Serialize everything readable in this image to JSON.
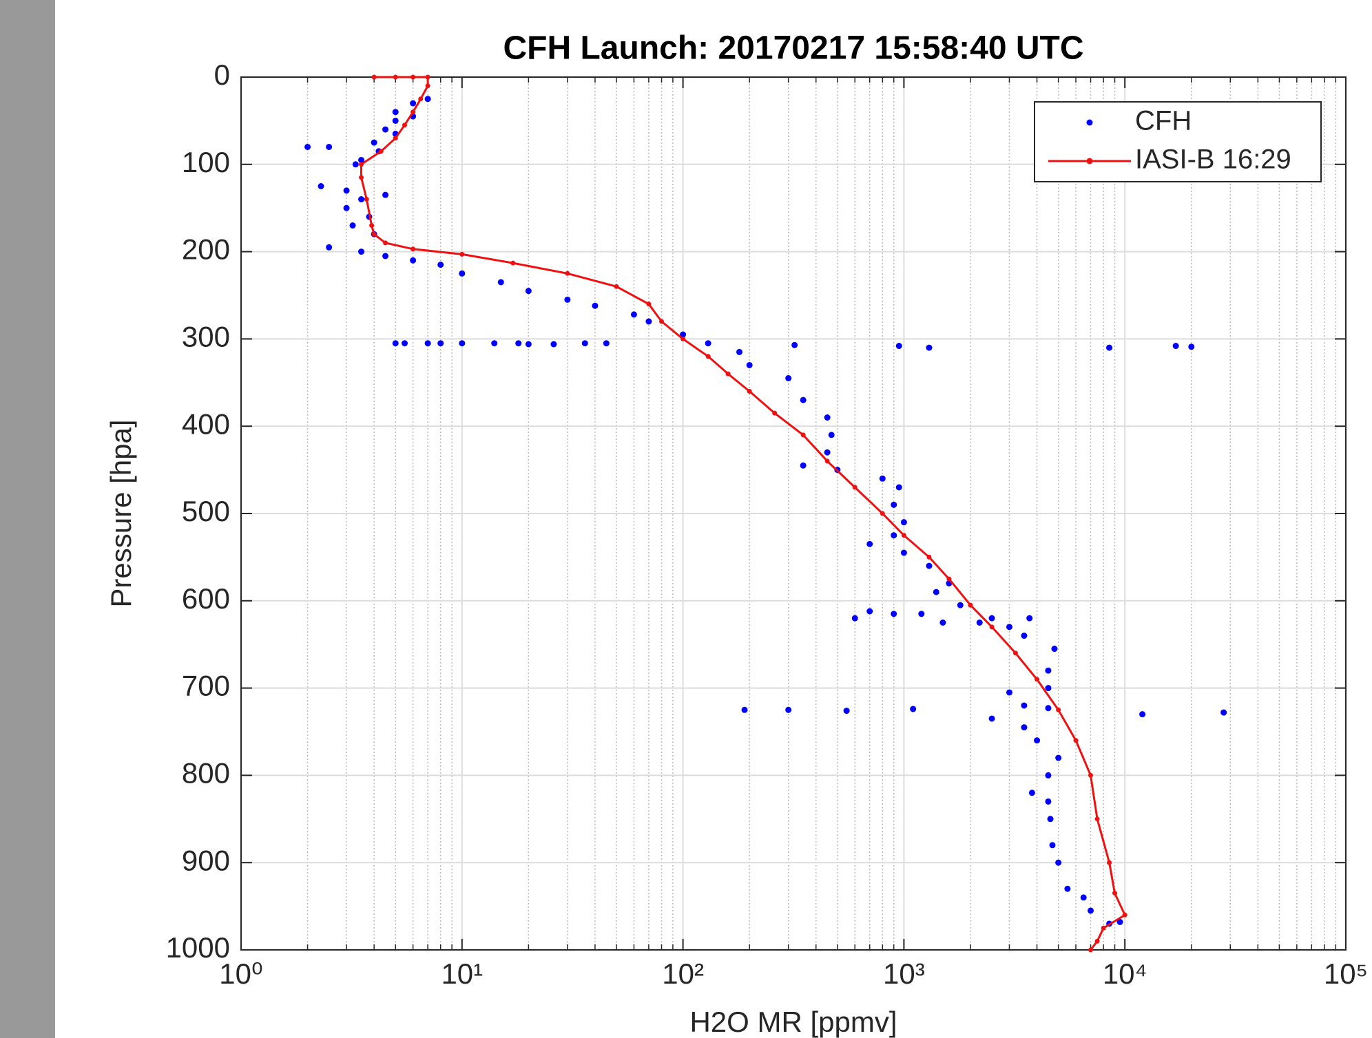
{
  "chart_data": {
    "type": "scatter",
    "title": "CFH Launch: 20170217 15:58:40 UTC",
    "x_label": "H2O MR [ppmv]",
    "y_label": "Pressure [hpa]",
    "x_log": true,
    "y_reversed": true,
    "grid": true,
    "minor_grid": true,
    "legend": "northeast",
    "xlim": [
      1,
      100000
    ],
    "xticks": [
      {
        "value": 1,
        "label": "10⁰"
      },
      {
        "value": 10,
        "label": "10¹"
      },
      {
        "value": 100,
        "label": "10²"
      },
      {
        "value": 1000,
        "label": "10³"
      },
      {
        "value": 10000,
        "label": "10⁴"
      },
      {
        "value": 100000,
        "label": "10⁵"
      }
    ],
    "x_minor_ticks": [
      2,
      3,
      4,
      5,
      6,
      7,
      8,
      9,
      20,
      30,
      40,
      50,
      60,
      70,
      80,
      90,
      200,
      300,
      400,
      500,
      600,
      700,
      800,
      900,
      2000,
      3000,
      4000,
      5000,
      6000,
      7000,
      8000,
      9000,
      20000,
      30000,
      40000,
      50000,
      60000,
      70000,
      80000,
      90000
    ],
    "ylim": [
      0,
      1000
    ],
    "yticks": [
      0,
      100,
      200,
      300,
      400,
      500,
      600,
      700,
      800,
      900,
      1000
    ],
    "series": [
      {
        "name": "CFH",
        "color": "#0000ff",
        "mode": "markers",
        "x": [
          7,
          6,
          5,
          6,
          5,
          4.5,
          5,
          4,
          4.2,
          3.5,
          3.3,
          2.5,
          2,
          2.3,
          3,
          3.5,
          4.5,
          3,
          3.8,
          3.2,
          4,
          2.5,
          3.5,
          4.5,
          6,
          8,
          10,
          15,
          20,
          30,
          40,
          60,
          70,
          100,
          130,
          180,
          200,
          300,
          350,
          450,
          470,
          450,
          350,
          500,
          800,
          950,
          900,
          1000,
          900,
          700,
          1000,
          1300,
          1600,
          1400,
          1800,
          2200,
          3500,
          4800,
          4500,
          4500,
          3000,
          3500,
          4500,
          2500,
          3500,
          4000,
          5000,
          4500,
          3800,
          4500,
          4600,
          4700,
          5000,
          5500,
          6500,
          7000,
          8500,
          9500,
          5,
          5.5,
          7,
          8,
          10,
          14,
          18,
          20,
          26,
          36,
          45,
          320,
          950,
          1300,
          8500,
          17000,
          20000,
          600,
          700,
          900,
          1200,
          1500,
          2500,
          3000,
          3700,
          190,
          300,
          550,
          1100,
          12000,
          28000
        ],
        "y": [
          25,
          30,
          40,
          45,
          50,
          60,
          65,
          75,
          85,
          95,
          100,
          80,
          80,
          125,
          130,
          140,
          135,
          150,
          160,
          170,
          180,
          195,
          200,
          205,
          210,
          215,
          225,
          235,
          245,
          255,
          262,
          272,
          280,
          295,
          305,
          315,
          330,
          345,
          370,
          390,
          410,
          430,
          445,
          450,
          460,
          470,
          490,
          510,
          525,
          535,
          545,
          560,
          580,
          590,
          605,
          625,
          640,
          655,
          680,
          700,
          705,
          720,
          723,
          735,
          745,
          760,
          780,
          800,
          820,
          830,
          850,
          880,
          900,
          930,
          940,
          955,
          970,
          968,
          305,
          305,
          305,
          305,
          305,
          305,
          305,
          306,
          306,
          305,
          305,
          307,
          308,
          310,
          310,
          308,
          309,
          620,
          612,
          615,
          615,
          625,
          620,
          630,
          620,
          725,
          725,
          726,
          724,
          730,
          728
        ]
      },
      {
        "name": "IASI-B 16:29",
        "color": "#ee1111",
        "mode": "lines+markers",
        "x": [
          4,
          5,
          6,
          7,
          7,
          6.5,
          6,
          5.5,
          5,
          4.3,
          3.5,
          3.5,
          3.7,
          3.9,
          4,
          4.5,
          6,
          10,
          17,
          30,
          50,
          70,
          80,
          100,
          130,
          160,
          200,
          260,
          350,
          450,
          600,
          800,
          1000,
          1300,
          1600,
          2000,
          2500,
          3200,
          4000,
          5000,
          6000,
          7000,
          7500,
          8500,
          9000,
          10000,
          8000,
          7500,
          7000
        ],
        "y": [
          0,
          0,
          0,
          0,
          10,
          25,
          40,
          55,
          70,
          85,
          100,
          115,
          140,
          170,
          180,
          190,
          197,
          203,
          213,
          225,
          240,
          260,
          280,
          300,
          320,
          340,
          360,
          385,
          410,
          440,
          470,
          500,
          525,
          550,
          575,
          605,
          630,
          660,
          690,
          725,
          760,
          800,
          850,
          900,
          935,
          960,
          975,
          990,
          1000
        ]
      }
    ]
  }
}
